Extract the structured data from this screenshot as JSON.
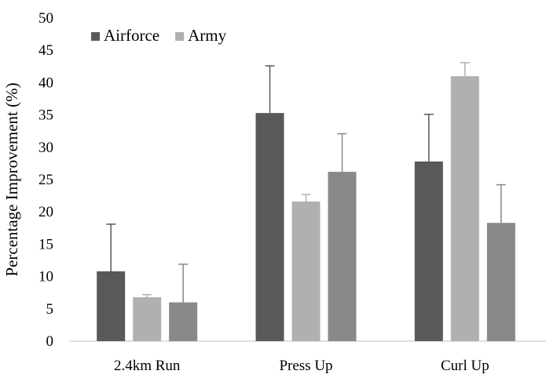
{
  "chart_data": {
    "type": "bar",
    "ylabel": "Percentage Improvement (%)",
    "xlabel": "",
    "ylim": [
      0,
      50
    ],
    "yticks": [
      0,
      5,
      10,
      15,
      20,
      25,
      30,
      35,
      40,
      45,
      50
    ],
    "grid": false,
    "legend_position": "top-left",
    "categories": [
      "2.4km Run",
      "Press Up",
      "Curl Up"
    ],
    "series": [
      {
        "name": "Airforce",
        "color": "#595959",
        "values": [
          10.8,
          35.3,
          27.8
        ],
        "errors": [
          7.3,
          7.3,
          7.3
        ]
      },
      {
        "name": "Army",
        "color": "#b0b0b0",
        "values": [
          6.8,
          21.6,
          41.0
        ],
        "errors": [
          0.4,
          1.1,
          2.1
        ]
      },
      {
        "name": "",
        "color": "#898989",
        "values": [
          6.0,
          26.2,
          18.3
        ],
        "errors": [
          5.9,
          5.9,
          5.9
        ]
      }
    ],
    "legend": [
      {
        "label": "Airforce",
        "color": "#595959"
      },
      {
        "label": "Army",
        "color": "#b0b0b0"
      }
    ]
  }
}
